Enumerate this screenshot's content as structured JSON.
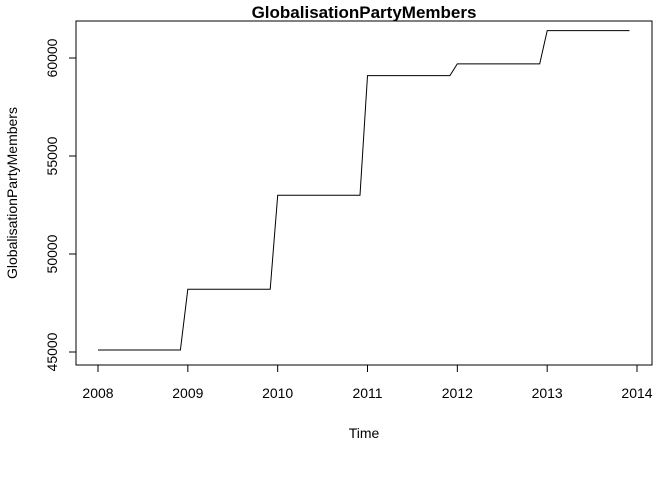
{
  "chart_data": {
    "type": "line",
    "title": "GlobalisationPartyMembers",
    "xlabel": "Time",
    "ylabel": "GlobalisationPartyMembers",
    "xlim": [
      2008,
      2014
    ],
    "ylim": [
      45000,
      61500
    ],
    "x_ticks": [
      2008,
      2009,
      2010,
      2011,
      2012,
      2013,
      2014
    ],
    "y_ticks": [
      45000,
      50000,
      55000,
      60000
    ],
    "x_tick_labels": [
      "2008",
      "2009",
      "2010",
      "2011",
      "2012",
      "2013",
      "2014"
    ],
    "y_tick_labels": [
      "45000",
      "50000",
      "55000",
      "60000"
    ],
    "grid": false,
    "legend": "none",
    "line_color": "#000000",
    "series": [
      {
        "x": [
          2008.0,
          2008.917,
          2009.0,
          2009.917,
          2010.0,
          2010.917,
          2011.0,
          2011.917,
          2012.0,
          2012.917,
          2013.0,
          2013.917
        ],
        "y": [
          45100,
          45100,
          48200,
          48200,
          53000,
          53000,
          59100,
          59100,
          59700,
          59700,
          61400,
          61400
        ]
      }
    ]
  }
}
